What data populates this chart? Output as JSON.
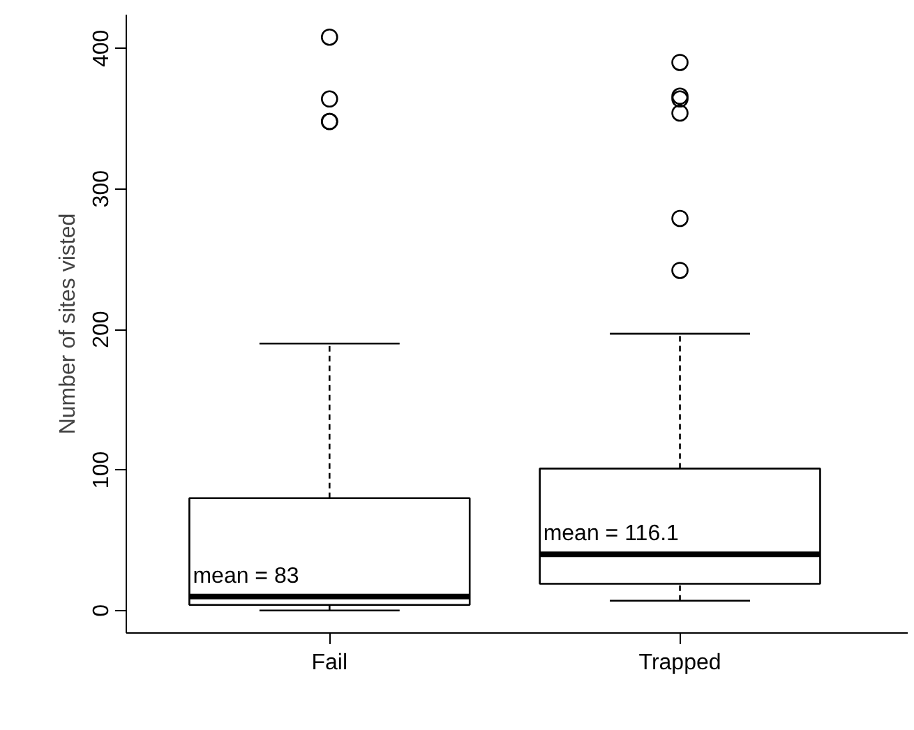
{
  "chart_data": {
    "type": "box",
    "ylabel": "Number of sites visted",
    "categories": [
      "Fail",
      "Trapped"
    ],
    "boxes": [
      {
        "low": 0,
        "q1": 4,
        "median": 10,
        "q3": 80,
        "high": 190,
        "outliers": [
          408,
          364,
          348,
          348
        ]
      },
      {
        "low": 7,
        "q1": 19,
        "median": 40,
        "q3": 101,
        "high": 197,
        "outliers": [
          390,
          366,
          364,
          354,
          279,
          242
        ]
      }
    ],
    "annotations": [
      "mean =  83",
      "mean =  116.1"
    ],
    "ylim": [
      -16,
      424
    ],
    "yticks": [
      0,
      100,
      200,
      300,
      400
    ],
    "grid": false
  }
}
